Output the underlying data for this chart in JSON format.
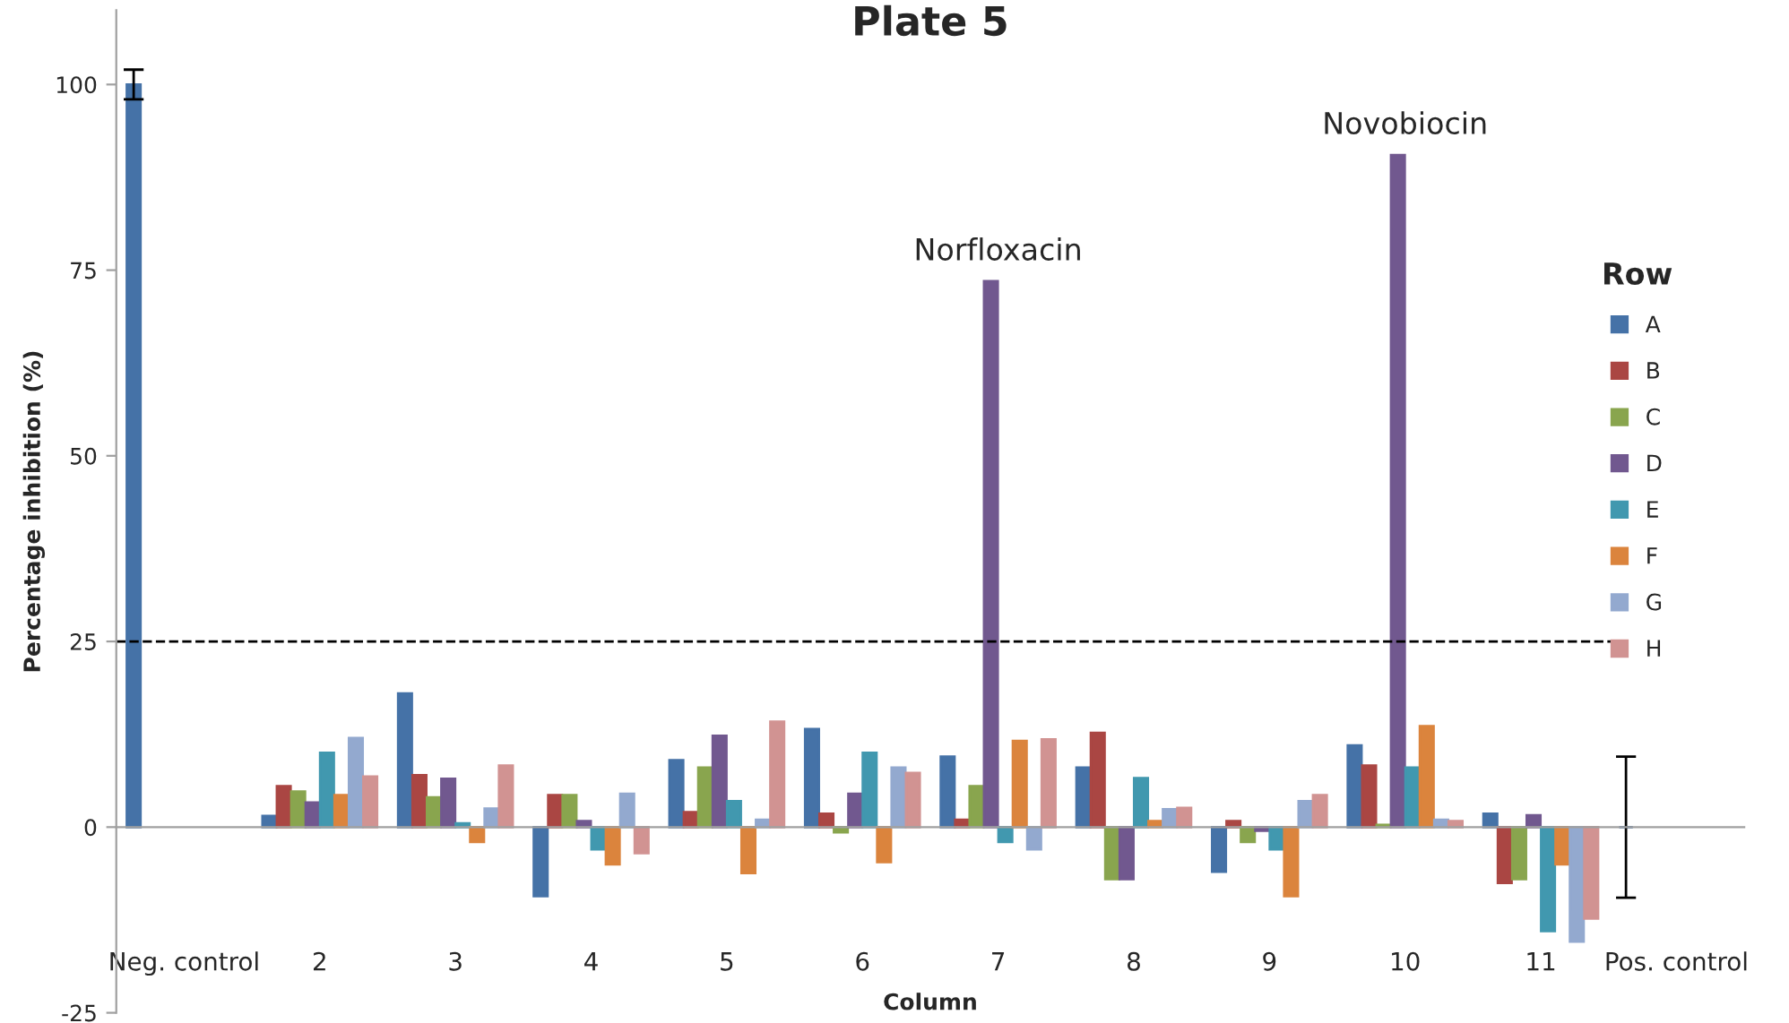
{
  "chart_data": {
    "type": "bar",
    "title": "Plate 5",
    "xlabel": "Column",
    "ylabel": "Percentage inhibition (%)",
    "legend_title": "Row",
    "categories": [
      "Neg. control",
      "2",
      "3",
      "4",
      "5",
      "6",
      "7",
      "8",
      "9",
      "10",
      "11",
      "Pos. control"
    ],
    "series": [
      {
        "name": "A",
        "color": "#4572a7",
        "values": [
          100,
          1.5,
          18,
          -9.3,
          9,
          13.2,
          9.5,
          8,
          -6,
          11,
          1.8,
          0
        ],
        "errors": [
          2,
          null,
          null,
          null,
          null,
          null,
          null,
          null,
          null,
          null,
          null,
          9.5
        ]
      },
      {
        "name": "B",
        "color": "#aa4643",
        "values": [
          null,
          5.5,
          7,
          4.3,
          2,
          1.8,
          1,
          12.7,
          0.8,
          8.3,
          -7.5,
          null
        ]
      },
      {
        "name": "C",
        "color": "#89a54e",
        "values": [
          null,
          4.8,
          4,
          4.3,
          8,
          -0.7,
          5.5,
          -7,
          -2,
          0.3,
          -7,
          null
        ]
      },
      {
        "name": "D",
        "color": "#71588f",
        "values": [
          null,
          3.3,
          6.5,
          0.8,
          12.3,
          4.5,
          73.5,
          -7,
          -0.5,
          90.5,
          1.6,
          null
        ]
      },
      {
        "name": "E",
        "color": "#4198af",
        "values": [
          null,
          10,
          0.5,
          -3,
          3.5,
          10,
          -2,
          6.6,
          -3,
          8,
          -14,
          null
        ]
      },
      {
        "name": "F",
        "color": "#db843d",
        "values": [
          null,
          4.3,
          -2,
          -5,
          -6.2,
          -4.7,
          11.6,
          0.8,
          -9.3,
          13.6,
          -5,
          null
        ]
      },
      {
        "name": "G",
        "color": "#93a9cf",
        "values": [
          null,
          12,
          2.5,
          4.5,
          1,
          8,
          -3,
          2.4,
          3.5,
          1,
          -15.4,
          null
        ]
      },
      {
        "name": "H",
        "color": "#d19392",
        "values": [
          null,
          6.8,
          8.3,
          -3.5,
          14.2,
          7.3,
          11.8,
          2.6,
          4.3,
          0.8,
          -12.3,
          null
        ]
      }
    ],
    "ylim": [
      -25,
      110
    ],
    "yticks": [
      -25,
      0,
      25,
      50,
      75,
      100
    ],
    "ref_lines": [
      {
        "axis": "y",
        "value": 25,
        "label": null,
        "color": "#000000",
        "line_style": "dashed"
      }
    ],
    "annotations": [
      {
        "text": "Norfloxacin",
        "x": "7",
        "y": 73.5
      },
      {
        "text": "Novobiocin",
        "x": "10",
        "y": 90.5
      }
    ],
    "grid": false,
    "legend": "right"
  }
}
